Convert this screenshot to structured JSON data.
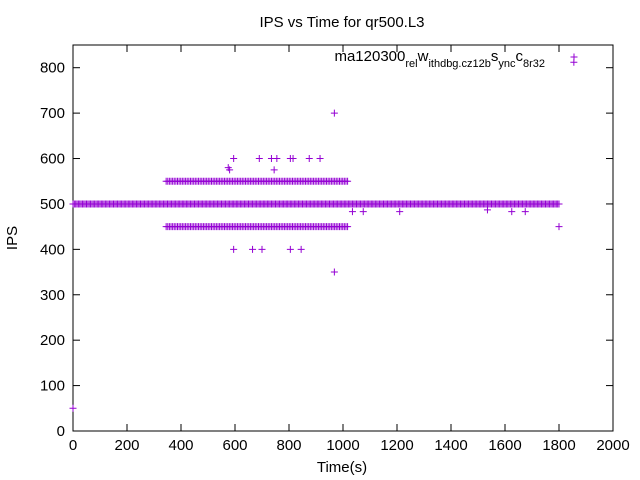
{
  "chart_data": {
    "type": "scatter",
    "title": "IPS vs Time for qr500.L3",
    "xlabel": "Time(s)",
    "ylabel": "IPS",
    "xlim": [
      0,
      2000
    ],
    "ylim": [
      0,
      850
    ],
    "xticks": [
      0,
      200,
      400,
      600,
      800,
      1000,
      1200,
      1400,
      1600,
      1800,
      2000
    ],
    "yticks": [
      0,
      100,
      200,
      300,
      400,
      500,
      600,
      700,
      800
    ],
    "grid": false,
    "legend_position": "top-right",
    "marker": "plus",
    "series": [
      {
        "name": "ma120300_rel_withdbg.cz12b_sync_c8r32",
        "legend_parts": [
          {
            "text": "ma120300",
            "sub": false
          },
          {
            "text": "rel",
            "sub": true
          },
          {
            "text": "w",
            "sub": false
          },
          {
            "text": "ithdbg.cz12b",
            "sub": true
          },
          {
            "text": "s",
            "sub": false
          },
          {
            "text": "ync",
            "sub": true
          },
          {
            "text": "c",
            "sub": false
          },
          {
            "text": "8r32",
            "sub": true
          }
        ],
        "color": "#9400d3",
        "points": [
          {
            "x": 0,
            "y": 50
          },
          {
            "x": 575,
            "y": 580
          },
          {
            "x": 580,
            "y": 575
          },
          {
            "x": 595,
            "y": 600
          },
          {
            "x": 690,
            "y": 600
          },
          {
            "x": 735,
            "y": 600
          },
          {
            "x": 745,
            "y": 575
          },
          {
            "x": 755,
            "y": 600
          },
          {
            "x": 805,
            "y": 600
          },
          {
            "x": 815,
            "y": 600
          },
          {
            "x": 875,
            "y": 600
          },
          {
            "x": 915,
            "y": 600
          },
          {
            "x": 968,
            "y": 700
          },
          {
            "x": 595,
            "y": 400
          },
          {
            "x": 665,
            "y": 400
          },
          {
            "x": 700,
            "y": 400
          },
          {
            "x": 805,
            "y": 400
          },
          {
            "x": 845,
            "y": 400
          },
          {
            "x": 968,
            "y": 350
          },
          {
            "x": 1035,
            "y": 483
          },
          {
            "x": 1075,
            "y": 483
          },
          {
            "x": 1210,
            "y": 483
          },
          {
            "x": 1535,
            "y": 487
          },
          {
            "x": 1625,
            "y": 483
          },
          {
            "x": 1675,
            "y": 483
          },
          {
            "x": 1800,
            "y": 450
          },
          {
            "x": 1855,
            "y": 812
          }
        ],
        "dense_runs": [
          {
            "y": 500,
            "x_start": 0,
            "x_end": 1800,
            "step": 5
          },
          {
            "y": 550,
            "x_start": 345,
            "x_end": 1020,
            "step": 6
          },
          {
            "y": 450,
            "x_start": 345,
            "x_end": 1020,
            "step": 6
          }
        ]
      }
    ]
  }
}
